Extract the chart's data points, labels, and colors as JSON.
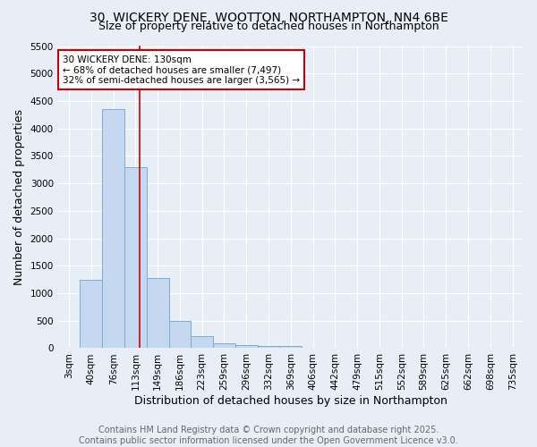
{
  "title": "30, WICKERY DENE, WOOTTON, NORTHAMPTON, NN4 6BE",
  "subtitle": "Size of property relative to detached houses in Northampton",
  "xlabel": "Distribution of detached houses by size in Northampton",
  "ylabel": "Number of detached properties",
  "categories": [
    "3sqm",
    "40sqm",
    "76sqm",
    "113sqm",
    "149sqm",
    "186sqm",
    "223sqm",
    "259sqm",
    "296sqm",
    "332sqm",
    "369sqm",
    "406sqm",
    "442sqm",
    "479sqm",
    "515sqm",
    "552sqm",
    "589sqm",
    "625sqm",
    "662sqm",
    "698sqm",
    "735sqm"
  ],
  "values": [
    0,
    1250,
    4350,
    3300,
    1280,
    500,
    220,
    90,
    55,
    40,
    35,
    0,
    0,
    0,
    0,
    0,
    0,
    0,
    0,
    0,
    0
  ],
  "bar_color": "#c5d8f0",
  "bar_edge_color": "#7aadd4",
  "vline_x_index": 3.17,
  "vline_color": "#cc0000",
  "ylim": [
    0,
    5500
  ],
  "yticks": [
    0,
    500,
    1000,
    1500,
    2000,
    2500,
    3000,
    3500,
    4000,
    4500,
    5000,
    5500
  ],
  "annotation_text": "30 WICKERY DENE: 130sqm\n← 68% of detached houses are smaller (7,497)\n32% of semi-detached houses are larger (3,565) →",
  "annotation_box_color": "#ffffff",
  "annotation_box_edge": "#cc0000",
  "footer_line1": "Contains HM Land Registry data © Crown copyright and database right 2025.",
  "footer_line2": "Contains public sector information licensed under the Open Government Licence v3.0.",
  "bg_color": "#e8eef5",
  "grid_color": "#ffffff",
  "title_fontsize": 10,
  "subtitle_fontsize": 9,
  "axis_label_fontsize": 9,
  "tick_fontsize": 7.5,
  "footer_fontsize": 7,
  "annot_fontsize": 7.5
}
